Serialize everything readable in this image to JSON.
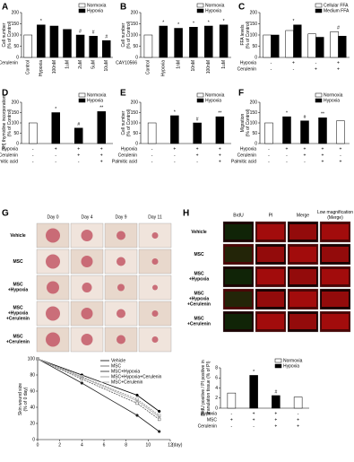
{
  "chart_data": [
    {
      "type": "bar",
      "panel": "A",
      "ylabel": "Cell number\n(% of Control)",
      "categories": [
        "Control",
        "Hypoxia",
        "100nM",
        "1uM",
        "2uM",
        "5uM",
        "10uM"
      ],
      "category_group_label": "Cerulenin",
      "series": [
        {
          "name": "Normoxia",
          "color": "#ffffff",
          "values": [
            100,
            null,
            null,
            null,
            null,
            null,
            null
          ]
        },
        {
          "name": "Hypoxia",
          "color": "#000000",
          "values": [
            null,
            145,
            140,
            125,
            100,
            95,
            75
          ]
        }
      ],
      "annotations": [
        null,
        "*",
        null,
        null,
        "#",
        "#",
        "#"
      ],
      "ylim": [
        0,
        200
      ],
      "yticks": [
        0,
        50,
        100,
        150,
        200
      ]
    },
    {
      "type": "bar",
      "panel": "B",
      "ylabel": "Cell number\n(% of Control)",
      "categories": [
        "Control",
        "Hypoxia",
        "1nM",
        "10nM",
        "100nM",
        "1uM"
      ],
      "category_group_label": "CAY10566",
      "series": [
        {
          "name": "Normoxia",
          "color": "#ffffff",
          "values": [
            100,
            null,
            null,
            null,
            null,
            null
          ]
        },
        {
          "name": "Hypoxia",
          "color": "#000000",
          "values": [
            null,
            140,
            130,
            135,
            140,
            145
          ]
        }
      ],
      "annotations": [
        null,
        "*",
        "*",
        "*",
        "*",
        "*"
      ],
      "ylim": [
        0,
        200
      ],
      "yticks": [
        0,
        50,
        100,
        150,
        200
      ]
    },
    {
      "type": "bar",
      "panel": "C",
      "ylabel": "FFA levels\n(% of Control)",
      "conditions": [
        {
          "name": "Hypoxia",
          "values": [
            "-",
            "+",
            "-",
            "+"
          ]
        },
        {
          "name": "Cerulenin",
          "values": [
            "-",
            "-",
            "+",
            "+"
          ]
        }
      ],
      "series": [
        {
          "name": "Cellular FFA",
          "color": "#ffffff",
          "values": [
            100,
            120,
            105,
            115
          ]
        },
        {
          "name": "Medium FFA",
          "color": "#000000",
          "values": [
            100,
            145,
            90,
            95
          ]
        }
      ],
      "annotations": [
        null,
        "*",
        null,
        "#"
      ],
      "ylim": [
        0,
        200
      ],
      "yticks": [
        0,
        50,
        100,
        150,
        200
      ]
    },
    {
      "type": "bar",
      "panel": "D",
      "ylabel": "[³H] thymidine incorporation\n(% of Control)",
      "conditions": [
        {
          "name": "Hypoxia",
          "values": [
            "-",
            "+",
            "+",
            "+"
          ]
        },
        {
          "name": "Cerulenin",
          "values": [
            "-",
            "-",
            "+",
            "+"
          ]
        },
        {
          "name": "Palmitic acid",
          "values": [
            "-",
            "-",
            "-",
            "+"
          ]
        }
      ],
      "series": [
        {
          "name": "Normoxia",
          "color": "#ffffff",
          "values": [
            100,
            null,
            null,
            null
          ]
        },
        {
          "name": "Hypoxia",
          "color": "#000000",
          "values": [
            null,
            150,
            75,
            155
          ]
        }
      ],
      "annotations": [
        null,
        "*",
        "#",
        "**"
      ],
      "ylim": [
        0,
        200
      ],
      "yticks": [
        0,
        50,
        100,
        150,
        200
      ]
    },
    {
      "type": "bar",
      "panel": "E",
      "ylabel": "Cell number\n(% of Control)",
      "conditions": [
        {
          "name": "Hypoxia",
          "values": [
            "-",
            "+",
            "+",
            "+"
          ]
        },
        {
          "name": "Cerulenin",
          "values": [
            "-",
            "-",
            "+",
            "+"
          ]
        },
        {
          "name": "Palmitic acid",
          "values": [
            "-",
            "-",
            "-",
            "+"
          ]
        }
      ],
      "series": [
        {
          "name": "Normoxia",
          "color": "#ffffff",
          "values": [
            100,
            null,
            null,
            null
          ]
        },
        {
          "name": "Hypoxia",
          "color": "#000000",
          "values": [
            null,
            135,
            100,
            130
          ]
        }
      ],
      "annotations": [
        null,
        "*",
        "#",
        "**"
      ],
      "ylim": [
        0,
        200
      ],
      "yticks": [
        0,
        50,
        100,
        150,
        200
      ]
    },
    {
      "type": "bar",
      "panel": "F",
      "ylabel": "Migration\n(% of Control)",
      "conditions": [
        {
          "name": "Hypoxia",
          "values": [
            "-",
            "+",
            "+",
            "+",
            "+"
          ]
        },
        {
          "name": "Cerulenin",
          "values": [
            "-",
            "-",
            "+",
            "+",
            "-"
          ]
        },
        {
          "name": "Palmitic acid",
          "values": [
            "-",
            "-",
            "-",
            "+",
            "+"
          ]
        }
      ],
      "series": [
        {
          "name": "Normoxia",
          "color": "#ffffff",
          "values": [
            100,
            null,
            null,
            null,
            110
          ]
        },
        {
          "name": "Hypoxia",
          "color": "#000000",
          "values": [
            null,
            130,
            110,
            125,
            null
          ]
        }
      ],
      "annotations": [
        null,
        "*",
        "#",
        "**",
        null
      ],
      "ylim": [
        0,
        200
      ],
      "yticks": [
        0,
        50,
        100,
        150,
        200
      ]
    },
    {
      "type": "line",
      "ylabel": "Skin wound size\n(% of 0 day)",
      "xlabel": "(day)",
      "x": [
        0,
        4,
        9,
        11
      ],
      "series": [
        {
          "name": "Vehicle",
          "color": "#000000",
          "values": [
            100,
            80,
            55,
            35
          ]
        },
        {
          "name": "MSC",
          "color": "#555555",
          "values": [
            100,
            75,
            45,
            25
          ]
        },
        {
          "name": "MSC+Hypoxia",
          "color": "#222222",
          "values": [
            100,
            70,
            30,
            10
          ]
        },
        {
          "name": "MSC+Hypoxia+Cerulenin",
          "color": "#888888",
          "values": [
            100,
            78,
            50,
            30
          ]
        },
        {
          "name": "MSC+Cerulenin",
          "color": "#aaaaaa",
          "values": [
            100,
            77,
            48,
            28
          ]
        }
      ],
      "xlim": [
        0,
        12
      ],
      "xticks": [
        0,
        2,
        4,
        6,
        8,
        10,
        12
      ],
      "ylim": [
        0,
        100
      ],
      "yticks": [
        0,
        20,
        40,
        60,
        80,
        100
      ]
    },
    {
      "type": "bar",
      "ylabel": "BrdU positive / PI positive in\ngranulation tissue (% of PI)",
      "conditions": [
        {
          "name": "Hypoxia",
          "values": [
            "-",
            "+",
            "+",
            "-"
          ]
        },
        {
          "name": "MSC",
          "values": [
            "+",
            "+",
            "+",
            "+"
          ]
        },
        {
          "name": "Cerulenin",
          "values": [
            "-",
            "-",
            "+",
            "+"
          ]
        }
      ],
      "series": [
        {
          "name": "Normoxia",
          "color": "#ffffff",
          "values": [
            3,
            null,
            null,
            2.2
          ]
        },
        {
          "name": "Hypoxia",
          "color": "#000000",
          "values": [
            null,
            6.5,
            2.5,
            null
          ]
        }
      ],
      "annotations": [
        null,
        "*",
        "#",
        null
      ],
      "ylim": [
        0,
        8
      ],
      "yticks": [
        0,
        2,
        4,
        6,
        8
      ]
    }
  ],
  "photo_grids": [
    {
      "panel": "G",
      "columns": [
        "Day 0",
        "Day 4",
        "Day 9",
        "Day 11"
      ],
      "rows": [
        "Vehicle",
        "MSC",
        "MSC\n+Hypoxia",
        "MSC\n+Hypoxia\n+Cerulenin",
        "MSC\n+Cerulenin"
      ]
    },
    {
      "panel": "H",
      "columns": [
        "BrdU",
        "PI",
        "Merge",
        "Low magnification\n(Merge)"
      ],
      "rows": [
        "Vehicle",
        "MSC",
        "MSC\n+Hypoxia",
        "MSC\n+Hypoxia\n+Cerulenin",
        "MSC\n+Cerulenin"
      ]
    }
  ]
}
